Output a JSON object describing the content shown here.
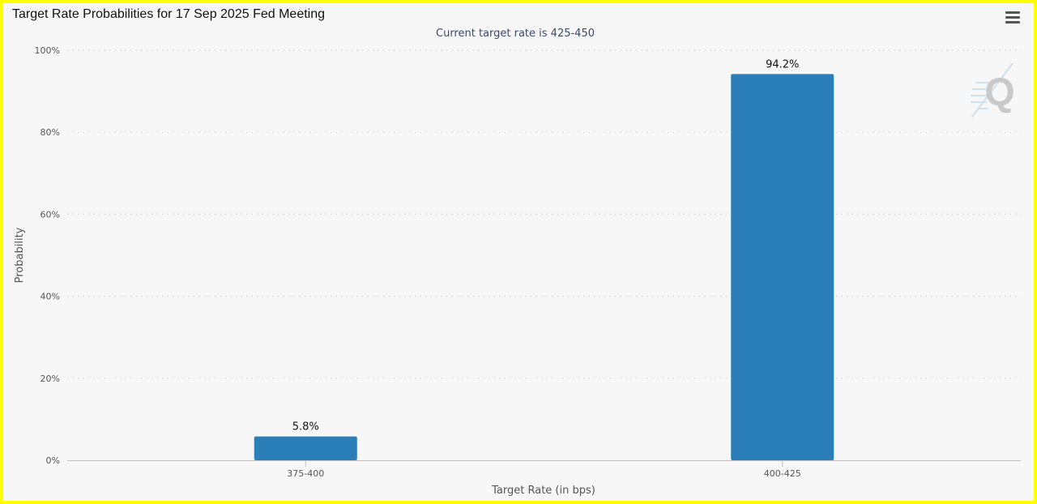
{
  "title": "Target Rate Probabilities for 17 Sep 2025 Fed Meeting",
  "logo": {
    "text": "Q",
    "icon": "cme-fedwatch-logo"
  },
  "menu": {
    "icon": "hamburger-menu-icon"
  },
  "chart_data": {
    "type": "bar",
    "title": "Target Rate Probabilities for 17 Sep 2025 Fed Meeting",
    "subtitle": "Current target rate is 425-450",
    "xlabel": "Target Rate (in bps)",
    "ylabel": "Probability",
    "categories": [
      "375-400",
      "400-425"
    ],
    "values": [
      5.8,
      94.2
    ],
    "data_labels": [
      "5.8%",
      "94.2%"
    ],
    "ylim": [
      0,
      100
    ],
    "yticks": [
      0,
      20,
      40,
      60,
      80,
      100
    ],
    "ytick_labels": [
      "0%",
      "20%",
      "40%",
      "60%",
      "80%",
      "100%"
    ],
    "grid": true,
    "grid_style": "dotted",
    "legend": "none",
    "bar_color": "#2a7fb8"
  }
}
